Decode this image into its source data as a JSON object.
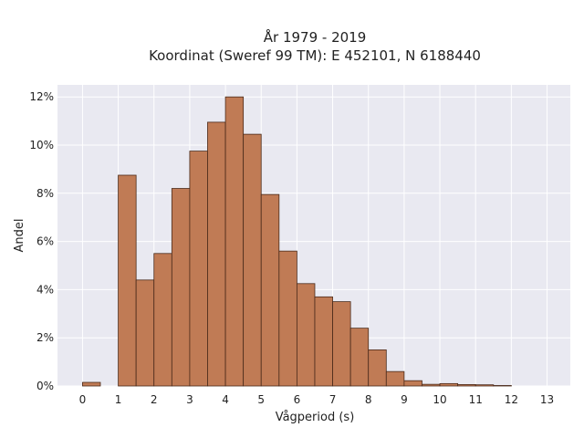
{
  "chart_data": {
    "type": "bar",
    "title": "År 1979 - 2019",
    "subtitle": "Koordinat (Sweref 99 TM): E 452101, N 6188440",
    "xlabel": "Vågperiod (s)",
    "ylabel": "Andel",
    "bin_width": 0.5,
    "bins": [
      {
        "x0": 0.0,
        "value": 0.15
      },
      {
        "x0": 0.5,
        "value": 0.0
      },
      {
        "x0": 1.0,
        "value": 8.75
      },
      {
        "x0": 1.5,
        "value": 4.4
      },
      {
        "x0": 2.0,
        "value": 5.5
      },
      {
        "x0": 2.5,
        "value": 8.2
      },
      {
        "x0": 3.0,
        "value": 9.75
      },
      {
        "x0": 3.5,
        "value": 10.95
      },
      {
        "x0": 4.0,
        "value": 12.0
      },
      {
        "x0": 4.5,
        "value": 10.45
      },
      {
        "x0": 5.0,
        "value": 7.95
      },
      {
        "x0": 5.5,
        "value": 5.6
      },
      {
        "x0": 6.0,
        "value": 4.25
      },
      {
        "x0": 6.5,
        "value": 3.7
      },
      {
        "x0": 7.0,
        "value": 3.5
      },
      {
        "x0": 7.5,
        "value": 2.4
      },
      {
        "x0": 8.0,
        "value": 1.5
      },
      {
        "x0": 8.5,
        "value": 0.6
      },
      {
        "x0": 9.0,
        "value": 0.22
      },
      {
        "x0": 9.5,
        "value": 0.07
      },
      {
        "x0": 10.0,
        "value": 0.1
      },
      {
        "x0": 10.5,
        "value": 0.06
      },
      {
        "x0": 11.0,
        "value": 0.05
      },
      {
        "x0": 11.5,
        "value": 0.02
      }
    ],
    "xlim": [
      -0.7,
      13.65
    ],
    "ylim": [
      0,
      12.5
    ],
    "xticks": [
      "0",
      "1",
      "2",
      "3",
      "4",
      "5",
      "6",
      "7",
      "8",
      "9",
      "10",
      "11",
      "12",
      "13"
    ],
    "yticks": [
      "0%",
      "2%",
      "4%",
      "6%",
      "8%",
      "10%",
      "12%"
    ],
    "grid": true,
    "bar_color": "#c07b55",
    "bar_edge_color": "#4a2a1a",
    "background_color": "#e9e9f1",
    "grid_color": "#ffffff"
  }
}
